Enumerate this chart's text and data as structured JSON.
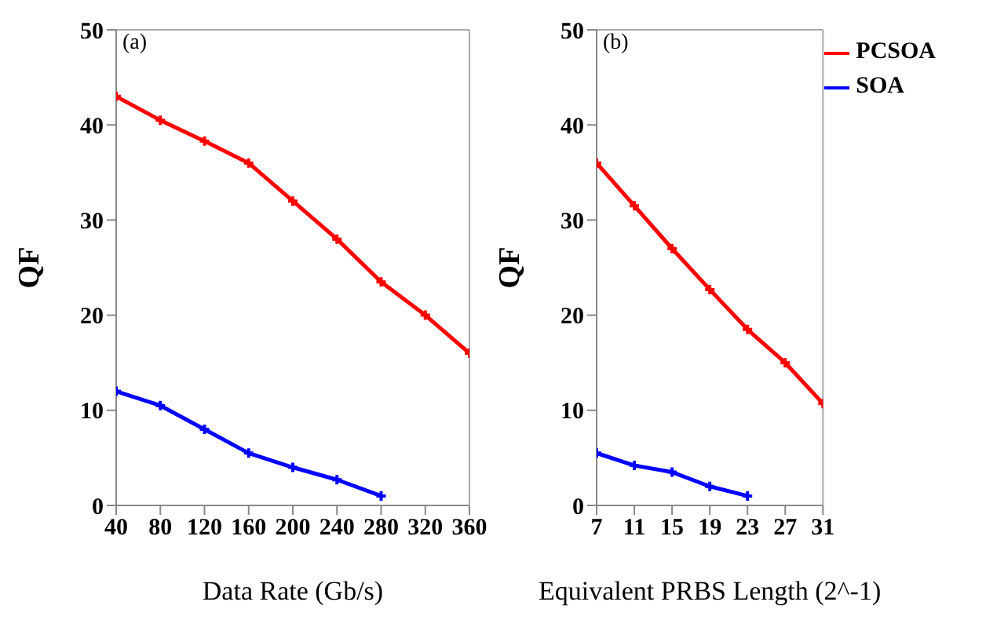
{
  "chart_data": [
    {
      "type": "line",
      "xlabel": "Data Rate (Gb/s)",
      "ylabel": "QF",
      "annotations": [
        "(a)"
      ],
      "xlim": [
        40,
        360
      ],
      "xticks": [
        40,
        80,
        120,
        160,
        200,
        240,
        280,
        320,
        360
      ],
      "ylim": [
        0,
        50
      ],
      "yticks": [
        0,
        10,
        20,
        30,
        40,
        50
      ],
      "legend": false,
      "marker": "cross",
      "line_style": "solid",
      "series": [
        {
          "color": "#ff0000",
          "x": [
            40,
            80,
            120,
            160,
            200,
            240,
            280,
            320,
            360
          ],
          "values": [
            43,
            40.5,
            38.3,
            36,
            32,
            28,
            23.5,
            20,
            16
          ]
        },
        {
          "color": "#0000ff",
          "x": [
            40,
            80,
            120,
            160,
            200,
            240,
            280
          ],
          "values": [
            12,
            10.5,
            8,
            5.5,
            4,
            2.7,
            1
          ]
        }
      ]
    },
    {
      "type": "line",
      "xlabel": "Equivalent PRBS Length (2^-1)",
      "ylabel": "QF",
      "annotations": [
        "(b)"
      ],
      "xlim": [
        7,
        31
      ],
      "xticks": [
        7,
        11,
        15,
        19,
        23,
        27,
        31
      ],
      "ylim": [
        0,
        50
      ],
      "yticks": [
        0,
        10,
        20,
        30,
        40,
        50
      ],
      "legend": "top right",
      "marker": "cross",
      "line_style": "solid",
      "series": [
        {
          "name": "PCSOA",
          "color": "#ff0000",
          "x": [
            7,
            11,
            15,
            19,
            23,
            27,
            31
          ],
          "values": [
            36,
            31.5,
            27,
            22.7,
            18.5,
            15,
            10.7
          ]
        },
        {
          "name": "SOA",
          "color": "#0000ff",
          "x": [
            7,
            11,
            15,
            19,
            23
          ],
          "values": [
            5.5,
            4.2,
            3.5,
            2,
            1
          ]
        }
      ]
    }
  ]
}
